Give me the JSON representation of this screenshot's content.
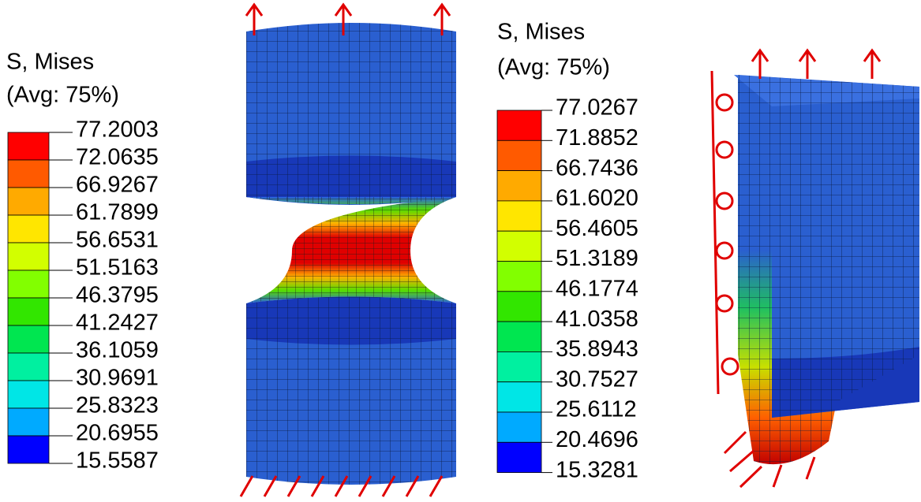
{
  "legends": [
    {
      "title": "S, Mises",
      "subtitle": "(Avg: 75%)",
      "values": [
        "77.2003",
        "72.0635",
        "66.9267",
        "61.7899",
        "56.6531",
        "51.5163",
        "46.3795",
        "41.2427",
        "36.1059",
        "30.9691",
        "25.8323",
        "20.6955",
        "15.5587"
      ]
    },
    {
      "title": "S, Mises",
      "subtitle": "(Avg: 75%)",
      "values": [
        "77.0267",
        "71.8852",
        "66.7436",
        "61.6020",
        "56.4605",
        "51.3189",
        "46.1774",
        "41.0358",
        "35.8943",
        "30.7527",
        "25.6112",
        "20.4696",
        "15.3281"
      ]
    }
  ]
}
